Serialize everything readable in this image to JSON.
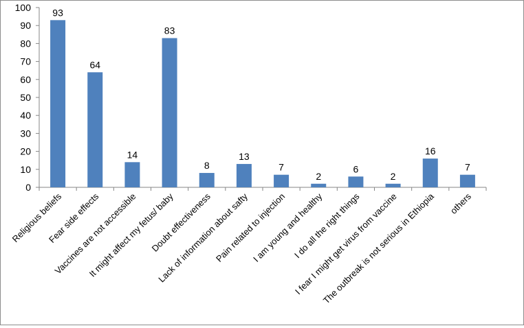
{
  "chart_data": {
    "type": "bar",
    "title": "",
    "xlabel": "",
    "ylabel": "",
    "ylim": [
      0,
      100
    ],
    "yticks": [
      0,
      10,
      20,
      30,
      40,
      50,
      60,
      70,
      80,
      90,
      100
    ],
    "grid": false,
    "legend": "none",
    "bar_color": "#4f81bd",
    "categories": [
      "Religious beliefs",
      "Fear side effects",
      "Vaccines are not accessible",
      "It might affect my fetus/ baby",
      "Doubt effectiveness",
      "Lack of information about safty",
      "Pain related to injection",
      "I am young and healthy",
      "I do all the right things",
      "I fear I might get virus from vaccine",
      "The outbreak is not serious in Ethiopia",
      "others"
    ],
    "values": [
      93,
      64,
      14,
      83,
      8,
      13,
      7,
      2,
      6,
      2,
      16,
      7
    ],
    "data_labels": [
      "93",
      "64",
      "14",
      "83",
      "8",
      "13",
      "7",
      "2",
      "6",
      "2",
      "16",
      "7"
    ]
  }
}
